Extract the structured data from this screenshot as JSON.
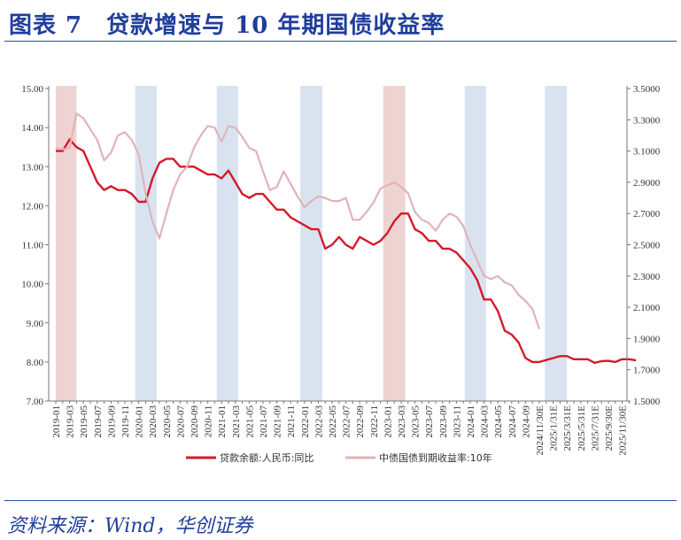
{
  "title": "图表 7　贷款增速与 10 年期国债收益率",
  "source": "资料来源：Wind，华创证券",
  "chart_data": {
    "type": "line",
    "title": "贷款增速与 10 年期国债收益率",
    "xlabel": "",
    "ylabel_left": "",
    "ylabel_right": "",
    "ylim_left": [
      7,
      15
    ],
    "ylim_right": [
      1.5,
      3.5
    ],
    "left_ticks": [
      "15.00",
      "14.00",
      "13.00",
      "12.00",
      "11.00",
      "10.00",
      "9.00",
      "8.00",
      "7.00"
    ],
    "right_ticks": [
      "3.5000",
      "3.3000",
      "3.1000",
      "2.9000",
      "2.7000",
      "2.5000",
      "2.3000",
      "2.1000",
      "1.9000",
      "1.7000",
      "1.5000"
    ],
    "x_tick_labels": [
      "2019-01",
      "2019-03",
      "2019-05",
      "2019-07",
      "2019-09",
      "2019-11",
      "2020-01",
      "2020-03",
      "2020-05",
      "2020-07",
      "2020-09",
      "2020-11",
      "2021-01",
      "2021-03",
      "2021-05",
      "2021-07",
      "2021-09",
      "2021-11",
      "2022-01",
      "2022-03",
      "2022-05",
      "2022-07",
      "2022-09",
      "2022-11",
      "2023-01",
      "2023-03",
      "2023-05",
      "2023-07",
      "2023-09",
      "2023-11",
      "2024-01",
      "2024-03",
      "2024-05",
      "2024-07",
      "2024-09",
      "2024/11/30E",
      "2025/1/31E",
      "2025/3/31E",
      "2025/5/31E",
      "2025/7/31E",
      "2025/9/30E",
      "2025/11/30E"
    ],
    "x_start": "2019-01",
    "x_unit": "month",
    "grid": false,
    "legend_position": "bottom",
    "bands": [
      {
        "from": 0,
        "to": 3,
        "color": "#eed3d3"
      },
      {
        "from": 11.5,
        "to": 14.6,
        "color": "#d9e3f0"
      },
      {
        "from": 23.3,
        "to": 26.4,
        "color": "#d9e3f0"
      },
      {
        "from": 35.4,
        "to": 38.6,
        "color": "#d9e3f0"
      },
      {
        "from": 47.4,
        "to": 50.6,
        "color": "#eed3d3"
      },
      {
        "from": 59.2,
        "to": 62.3,
        "color": "#d9e3f0"
      },
      {
        "from": 70.8,
        "to": 74,
        "color": "#d9e3f0"
      }
    ],
    "series": [
      {
        "name": "贷款余额:人民币:同比",
        "axis": "left",
        "color": "#d7182a",
        "values": [
          13.4,
          13.4,
          13.7,
          13.5,
          13.4,
          13.0,
          12.6,
          12.4,
          12.5,
          12.4,
          12.4,
          12.3,
          12.1,
          12.1,
          12.7,
          13.1,
          13.2,
          13.2,
          13.0,
          13.0,
          13.0,
          12.9,
          12.8,
          12.8,
          12.7,
          12.9,
          12.6,
          12.3,
          12.2,
          12.3,
          12.3,
          12.1,
          11.9,
          11.9,
          11.7,
          11.6,
          11.5,
          11.4,
          11.4,
          10.9,
          11.0,
          11.2,
          11.0,
          10.9,
          11.2,
          11.1,
          11.0,
          11.1,
          11.3,
          11.6,
          11.8,
          11.8,
          11.4,
          11.3,
          11.1,
          11.1,
          10.9,
          10.9,
          10.8,
          10.6,
          10.4,
          10.1,
          9.6,
          9.6,
          9.3,
          8.8,
          8.7,
          8.5,
          8.1,
          8.0,
          8.0,
          8.05,
          8.1,
          8.15,
          8.15,
          8.07,
          8.07,
          8.07,
          7.98,
          8.02,
          8.03,
          8.0,
          8.07,
          8.07,
          8.04
        ]
      },
      {
        "name": "中债国债到期收益率:10年",
        "axis": "right",
        "color": "#e0b4b8",
        "values": [
          3.12,
          3.11,
          3.12,
          3.34,
          3.31,
          3.24,
          3.17,
          3.04,
          3.09,
          3.2,
          3.22,
          3.17,
          3.08,
          2.83,
          2.65,
          2.54,
          2.7,
          2.85,
          2.95,
          3.0,
          3.12,
          3.2,
          3.26,
          3.25,
          3.16,
          3.26,
          3.25,
          3.19,
          3.12,
          3.1,
          2.97,
          2.85,
          2.87,
          2.97,
          2.89,
          2.81,
          2.74,
          2.78,
          2.81,
          2.8,
          2.78,
          2.78,
          2.8,
          2.66,
          2.66,
          2.71,
          2.77,
          2.86,
          2.88,
          2.9,
          2.87,
          2.83,
          2.71,
          2.66,
          2.64,
          2.59,
          2.66,
          2.7,
          2.68,
          2.62,
          2.5,
          2.4,
          2.3,
          2.28,
          2.3,
          2.26,
          2.24,
          2.18,
          2.14,
          2.09,
          1.96
        ]
      }
    ]
  }
}
